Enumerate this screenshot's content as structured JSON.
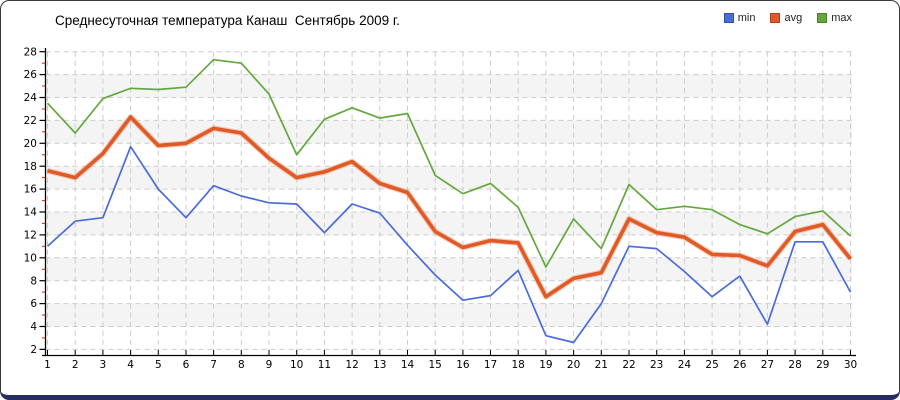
{
  "window": {
    "background": "#ffffff",
    "frame_border_color": "#3a3a3a",
    "frame_bottom_color": "#282c62"
  },
  "chart_data": {
    "type": "line",
    "title": "Среднесуточная температура Канаш  Сентябрь 2009 г.",
    "xlabel": "",
    "ylabel": "",
    "x": [
      1,
      2,
      3,
      4,
      5,
      6,
      7,
      8,
      9,
      10,
      11,
      12,
      13,
      14,
      15,
      16,
      17,
      18,
      19,
      20,
      21,
      22,
      23,
      24,
      25,
      26,
      27,
      28,
      29,
      30
    ],
    "yticks": [
      2,
      4,
      6,
      8,
      10,
      12,
      14,
      16,
      18,
      20,
      22,
      24,
      26,
      28
    ],
    "ylim": [
      1.5,
      28
    ],
    "grid": true,
    "grid_style": "dashed",
    "grid_color": "#cccccc",
    "band_color": "#f4f4f4",
    "axis_color": "#000000",
    "minor_tick_color": "#cc2222",
    "legend_position": "top-right",
    "series": [
      {
        "name": "min",
        "color": "#4a6cd9",
        "width": 1.7,
        "values": [
          11.0,
          13.2,
          13.5,
          19.7,
          16.0,
          13.5,
          16.3,
          15.4,
          14.8,
          14.7,
          12.2,
          14.7,
          13.9,
          11.1,
          8.5,
          6.3,
          6.7,
          8.9,
          3.2,
          2.6,
          6.0,
          11.0,
          10.8,
          8.8,
          6.6,
          8.4,
          4.2,
          11.4,
          11.4,
          7.0
        ]
      },
      {
        "name": "avg",
        "color": "#e05a28",
        "halo": "#f2a079",
        "width": 3.6,
        "values": [
          17.6,
          17.0,
          19.1,
          22.3,
          19.8,
          20.0,
          21.3,
          20.9,
          18.7,
          17.0,
          17.5,
          18.4,
          16.5,
          15.7,
          12.3,
          10.9,
          11.5,
          11.3,
          6.6,
          8.2,
          8.7,
          13.4,
          12.2,
          11.8,
          10.3,
          10.2,
          9.3,
          12.3,
          12.9,
          9.9
        ]
      },
      {
        "name": "max",
        "color": "#63a83e",
        "width": 1.7,
        "values": [
          23.5,
          20.9,
          23.9,
          24.8,
          24.7,
          24.9,
          27.3,
          27.0,
          24.3,
          19.0,
          22.1,
          23.1,
          22.2,
          22.6,
          17.2,
          15.6,
          16.5,
          14.4,
          9.2,
          13.4,
          10.8,
          16.4,
          14.2,
          14.5,
          14.2,
          12.9,
          12.1,
          13.6,
          14.1,
          11.9
        ]
      }
    ]
  }
}
